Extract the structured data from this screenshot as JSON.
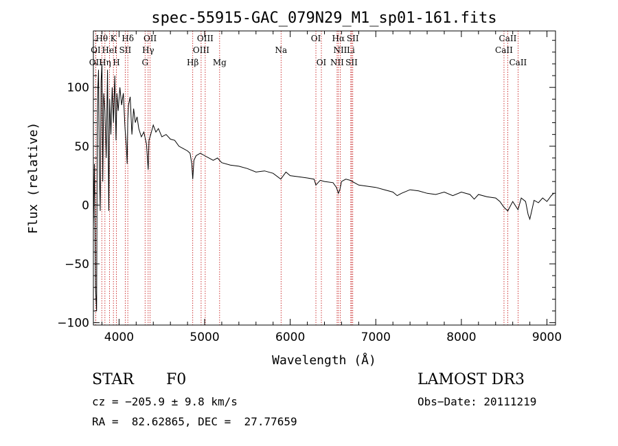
{
  "colors": {
    "axis": "#000000",
    "spectrum": "#000000",
    "line_marker": "#c00000"
  },
  "chart_data": {
    "type": "line",
    "title": "spec-55915-GAC_079N29_M1_sp01-161.fits",
    "xlabel": "Wavelength (Å)",
    "ylabel": "Flux (relative)",
    "xlim": [
      3700,
      9100
    ],
    "ylim": [
      -102,
      148
    ],
    "x_ticks": [
      4000,
      5000,
      6000,
      7000,
      8000,
      9000
    ],
    "y_ticks": [
      -100,
      -50,
      0,
      50,
      100
    ],
    "series": [
      {
        "name": "spectrum",
        "x": [
          3700,
          3712,
          3725,
          3738,
          3745,
          3752,
          3760,
          3770,
          3780,
          3790,
          3800,
          3810,
          3820,
          3835,
          3850,
          3865,
          3880,
          3890,
          3905,
          3920,
          3935,
          3950,
          3965,
          3975,
          3990,
          4010,
          4030,
          4050,
          4070,
          4085,
          4095,
          4102,
          4110,
          4130,
          4150,
          4170,
          4190,
          4210,
          4230,
          4260,
          4290,
          4320,
          4340,
          4350,
          4370,
          4400,
          4430,
          4460,
          4500,
          4550,
          4600,
          4650,
          4700,
          4750,
          4800,
          4830,
          4850,
          4861,
          4875,
          4900,
          4950,
          5000,
          5050,
          5100,
          5150,
          5200,
          5300,
          5400,
          5500,
          5600,
          5700,
          5800,
          5890,
          5950,
          6000,
          6100,
          6200,
          6280,
          6300,
          6350,
          6400,
          6500,
          6540,
          6563,
          6580,
          6600,
          6650,
          6700,
          6800,
          6900,
          7000,
          7100,
          7200,
          7250,
          7300,
          7400,
          7500,
          7600,
          7700,
          7800,
          7900,
          8000,
          8100,
          8150,
          8200,
          8300,
          8400,
          8450,
          8498,
          8542,
          8600,
          8662,
          8700,
          8750,
          8780,
          8800,
          8850,
          8900,
          8950,
          9000,
          9050,
          9080
        ],
        "values": [
          -20,
          35,
          -70,
          -90,
          60,
          100,
          115,
          30,
          -5,
          105,
          120,
          20,
          95,
          80,
          40,
          115,
          -5,
          90,
          60,
          100,
          70,
          110,
          55,
          95,
          80,
          100,
          85,
          95,
          65,
          50,
          35,
          72,
          85,
          92,
          60,
          82,
          70,
          75,
          65,
          58,
          62,
          52,
          30,
          55,
          60,
          68,
          62,
          65,
          58,
          60,
          56,
          55,
          50,
          48,
          46,
          44,
          35,
          22,
          38,
          42,
          44,
          42,
          40,
          38,
          40,
          36,
          34,
          33,
          31,
          28,
          29,
          27,
          22,
          28,
          25,
          24,
          23,
          22,
          17,
          21,
          20,
          19,
          15,
          10,
          13,
          20,
          22,
          21,
          17,
          16,
          15,
          13,
          11,
          8,
          10,
          13,
          12,
          10,
          9,
          11,
          8,
          11,
          9,
          5,
          9,
          7,
          6,
          3,
          -2,
          -5,
          3,
          -4,
          6,
          3,
          -8,
          -12,
          4,
          2,
          6,
          3,
          8,
          10
        ]
      }
    ],
    "lines": [
      {
        "label": "Hθ",
        "x": 3798,
        "row": 0
      },
      {
        "label": "K",
        "x": 3934,
        "row": 0
      },
      {
        "label": "Hδ",
        "x": 4102,
        "row": 0
      },
      {
        "label": "OII",
        "x": 4363,
        "row": 0
      },
      {
        "label": "OIII",
        "x": 5007,
        "row": 0
      },
      {
        "label": "OI",
        "x": 6300,
        "row": 0
      },
      {
        "label": "Hα",
        "x": 6563,
        "row": 0
      },
      {
        "label": "SII",
        "x": 6731,
        "row": 0
      },
      {
        "label": "CaII",
        "x": 8542,
        "row": 0
      },
      {
        "label": "OI",
        "x": 3727,
        "row": 1
      },
      {
        "label": "HeI",
        "x": 3889,
        "row": 1
      },
      {
        "label": "SII",
        "x": 4072,
        "row": 1
      },
      {
        "label": "Hγ",
        "x": 4340,
        "row": 1
      },
      {
        "label": "OIII",
        "x": 4959,
        "row": 1
      },
      {
        "label": "Na",
        "x": 5893,
        "row": 1
      },
      {
        "label": "NII",
        "x": 6584,
        "row": 1
      },
      {
        "label": "Li",
        "x": 6708,
        "row": 1
      },
      {
        "label": "CaII",
        "x": 8498,
        "row": 1
      },
      {
        "label": "OII",
        "x": 3727,
        "row": 2
      },
      {
        "label": "Hη",
        "x": 3835,
        "row": 2
      },
      {
        "label": "H",
        "x": 3969,
        "row": 2
      },
      {
        "label": "G",
        "x": 4304,
        "row": 2
      },
      {
        "label": "Hβ",
        "x": 4861,
        "row": 2
      },
      {
        "label": "Mg",
        "x": 5175,
        "row": 2
      },
      {
        "label": "OI",
        "x": 6364,
        "row": 2
      },
      {
        "label": "NII",
        "x": 6548,
        "row": 2
      },
      {
        "label": "SII",
        "x": 6717,
        "row": 2
      },
      {
        "label": "CaII",
        "x": 8662,
        "row": 2
      }
    ]
  },
  "info": {
    "object_type": "STAR",
    "subclass": "F0",
    "survey": "LAMOST DR3",
    "cz": "cz = −205.9 ± 9.8 km/s",
    "obs_date": "Obs−Date: 20111219",
    "coords": "RA =  82.62865, DEC =  27.77659"
  }
}
